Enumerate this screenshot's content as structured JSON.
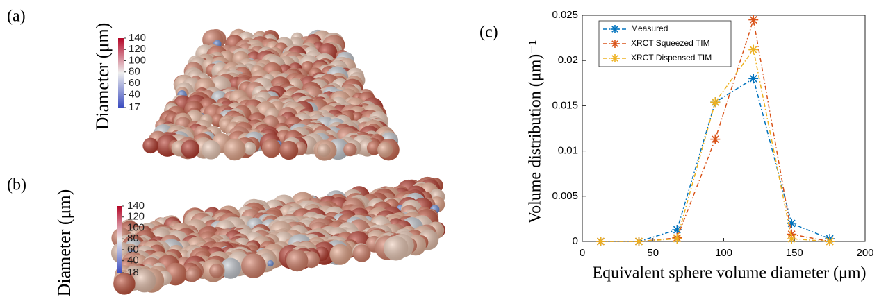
{
  "panels": [
    {
      "label": "(a)",
      "colorbar": {
        "title": "Diameter (μm)",
        "clim": [
          17,
          140
        ],
        "ticks": [
          140,
          120,
          100,
          80,
          60,
          40,
          17
        ]
      }
    },
    {
      "label": "(b)",
      "colorbar": {
        "title": "Diameter (μm)",
        "clim": [
          18,
          140
        ],
        "ticks": [
          140,
          120,
          100,
          80,
          60,
          40,
          18
        ]
      }
    }
  ],
  "chart_data": {
    "type": "line",
    "panel_label": "(c)",
    "x_label": "Equivalent sphere volume diameter (μm)",
    "y_label": "Volume distribution (μm)⁻¹",
    "x": [
      13,
      40,
      67,
      94,
      121,
      148,
      175
    ],
    "series": [
      {
        "name": "Measured",
        "color": "#0072bd",
        "values": [
          0,
          0,
          0.0013,
          0.0154,
          0.018,
          0.002,
          0.0003
        ]
      },
      {
        "name": "XRCT Squeezed TIM",
        "color": "#d95319",
        "values": [
          0,
          0,
          0.0004,
          0.0113,
          0.0245,
          0.0008,
          0
        ]
      },
      {
        "name": "XRCT Dispensed TIM",
        "color": "#edb120",
        "values": [
          0,
          0,
          0.0003,
          0.0154,
          0.0212,
          0.0003,
          0
        ]
      }
    ],
    "xlim": [
      0,
      200
    ],
    "xticks": [
      0,
      50,
      100,
      150,
      200
    ],
    "ylim": [
      0,
      0.025
    ],
    "yticks": [
      0,
      0.005,
      0.01,
      0.015,
      0.02,
      0.025
    ],
    "legend": "top-left"
  }
}
